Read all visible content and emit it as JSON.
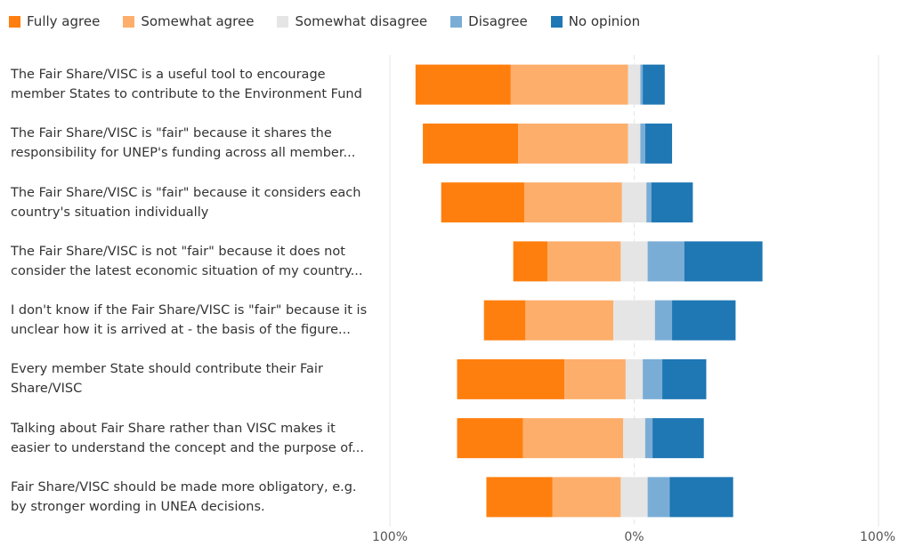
{
  "chart_data": {
    "type": "bar",
    "stacked": "diverging",
    "legend_position": "top",
    "series": [
      {
        "name": "Fully agree",
        "color": "#ff7f0e",
        "values": [
          39,
          39,
          34,
          14,
          17,
          44,
          27,
          27
        ]
      },
      {
        "name": "Somewhat agree",
        "color": "#fdae6b",
        "values": [
          48,
          45,
          40,
          30,
          36,
          25,
          41,
          28
        ]
      },
      {
        "name": "Somewhat disagree",
        "color": "#e5e5e5",
        "values": [
          5,
          5,
          10,
          11,
          17,
          7,
          9,
          11
        ]
      },
      {
        "name": "Disagree",
        "color": "#7aadd6",
        "values": [
          1,
          2,
          2,
          15,
          7,
          8,
          3,
          9
        ]
      },
      {
        "name": "No opinion",
        "color": "#1f77b4",
        "values": [
          9,
          11,
          17,
          32,
          26,
          18,
          21,
          26
        ]
      }
    ],
    "categories": [
      "The Fair Share/VISC is a useful tool to encourage member States to contribute to the Environment Fund",
      "The Fair Share/VISC is \"fair\" because it shares the responsibility for UNEP's funding across all member...",
      "The Fair Share/VISC is \"fair\" because it considers each country's situation individually",
      "The Fair Share/VISC is not \"fair\" because it does not consider the latest economic situation of my country...",
      "I don't know if the Fair Share/VISC is \"fair\" because it is unclear how it is arrived at - the basis of the figure...",
      "Every member State should contribute their Fair Share/VISC",
      "Talking about Fair Share rather than VISC makes it easier to understand the concept and the purpose of...",
      "Fair Share/VISC should be made more obligatory, e.g. by stronger wording in UNEA decisions."
    ],
    "negative_series": [
      "Fully agree",
      "Somewhat agree"
    ],
    "split_series": "Somewhat disagree",
    "xlim": [
      -100,
      100
    ],
    "tick_labels": [
      "100%",
      "0%",
      "100%"
    ],
    "grid": true
  }
}
